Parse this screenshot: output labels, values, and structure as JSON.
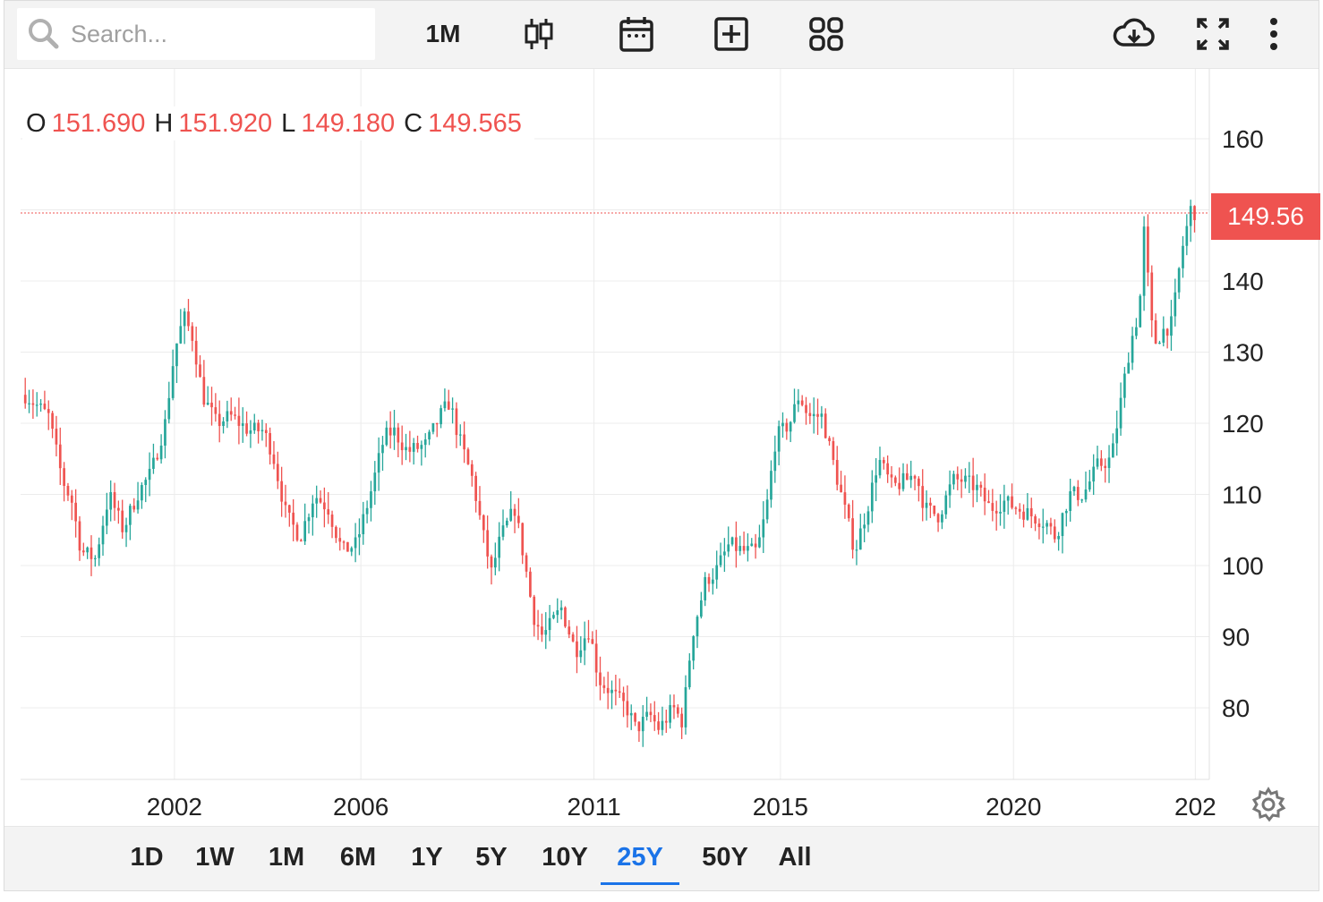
{
  "search": {
    "placeholder": "Search..."
  },
  "toolbar": {
    "interval": "1M",
    "icons": [
      "candlestick-icon",
      "calendar-icon",
      "add-indicator-icon",
      "layout-grid-icon",
      "cloud-download-icon",
      "fullscreen-icon",
      "more-icon"
    ]
  },
  "ohlc": {
    "o_label": "O",
    "o_value": "151.690",
    "h_label": "H",
    "h_value": "151.920",
    "l_label": "L",
    "l_value": "149.180",
    "c_label": "C",
    "c_value": "149.565"
  },
  "price_tag": "149.56",
  "range_buttons": [
    {
      "label": "1D",
      "active": false
    },
    {
      "label": "1W",
      "active": false
    },
    {
      "label": "1M",
      "active": false
    },
    {
      "label": "6M",
      "active": false
    },
    {
      "label": "1Y",
      "active": false
    },
    {
      "label": "5Y",
      "active": false
    },
    {
      "label": "10Y",
      "active": false
    },
    {
      "label": "25Y",
      "active": true
    },
    {
      "label": "50Y",
      "active": false
    },
    {
      "label": "All",
      "active": false
    }
  ],
  "colors": {
    "up": "#26a69a",
    "down": "#ef5350",
    "active": "#1a73e8",
    "grid": "#ececec"
  },
  "chart_data": {
    "type": "candlestick",
    "interval": "1M",
    "x_tick_labels": [
      "2002",
      "2006",
      "2011",
      "2015",
      "2020",
      "202"
    ],
    "y_tick_labels": [
      "160",
      "140",
      "130",
      "120",
      "110",
      "100",
      "90",
      "80"
    ],
    "ylim": [
      70,
      170
    ],
    "xlim": [
      1998.7,
      2024.2
    ],
    "last_close": 149.565,
    "grid": true,
    "path": [
      [
        1998.8,
        124
      ],
      [
        1999.3,
        121
      ],
      [
        1999.6,
        112
      ],
      [
        1999.8,
        109
      ],
      [
        2000.0,
        102
      ],
      [
        2000.3,
        101
      ],
      [
        2000.6,
        110
      ],
      [
        2000.9,
        105
      ],
      [
        2001.2,
        110
      ],
      [
        2001.5,
        113
      ],
      [
        2001.8,
        120
      ],
      [
        2002.0,
        130
      ],
      [
        2002.2,
        135
      ],
      [
        2002.4,
        132
      ],
      [
        2002.6,
        124
      ],
      [
        2002.9,
        120
      ],
      [
        2003.2,
        121
      ],
      [
        2003.6,
        119
      ],
      [
        2003.9,
        119
      ],
      [
        2004.1,
        116
      ],
      [
        2004.4,
        107
      ],
      [
        2004.7,
        104
      ],
      [
        2005.0,
        110
      ],
      [
        2005.3,
        108
      ],
      [
        2005.6,
        102
      ],
      [
        2005.9,
        103
      ],
      [
        2006.2,
        110
      ],
      [
        2006.5,
        118
      ],
      [
        2006.7,
        119
      ],
      [
        2007.0,
        116
      ],
      [
        2007.4,
        117
      ],
      [
        2007.7,
        121
      ],
      [
        2007.9,
        123
      ],
      [
        2008.1,
        118
      ],
      [
        2008.4,
        112
      ],
      [
        2008.6,
        105
      ],
      [
        2008.8,
        99
      ],
      [
        2009.0,
        104
      ],
      [
        2009.3,
        108
      ],
      [
        2009.5,
        101
      ],
      [
        2009.7,
        93
      ],
      [
        2009.9,
        90
      ],
      [
        2010.1,
        92
      ],
      [
        2010.3,
        94
      ],
      [
        2010.6,
        88
      ],
      [
        2010.9,
        91
      ],
      [
        2011.1,
        84
      ],
      [
        2011.4,
        82
      ],
      [
        2011.7,
        80
      ],
      [
        2011.9,
        77
      ],
      [
        2012.2,
        79
      ],
      [
        2012.4,
        77
      ],
      [
        2012.7,
        80
      ],
      [
        2012.9,
        78
      ],
      [
        2013.1,
        90
      ],
      [
        2013.4,
        98
      ],
      [
        2013.6,
        99
      ],
      [
        2013.9,
        103
      ],
      [
        2014.2,
        102
      ],
      [
        2014.5,
        102
      ],
      [
        2014.7,
        108
      ],
      [
        2014.9,
        118
      ],
      [
        2015.2,
        120
      ],
      [
        2015.4,
        124
      ],
      [
        2015.6,
        121
      ],
      [
        2015.9,
        121
      ],
      [
        2016.0,
        118
      ],
      [
        2016.3,
        110
      ],
      [
        2016.6,
        102
      ],
      [
        2016.9,
        109
      ],
      [
        2017.1,
        115
      ],
      [
        2017.4,
        111
      ],
      [
        2017.7,
        112
      ],
      [
        2017.9,
        113
      ],
      [
        2018.1,
        108
      ],
      [
        2018.4,
        107
      ],
      [
        2018.7,
        112
      ],
      [
        2018.9,
        112
      ],
      [
        2019.2,
        111
      ],
      [
        2019.5,
        108
      ],
      [
        2019.8,
        109
      ],
      [
        2020.1,
        108
      ],
      [
        2020.4,
        107
      ],
      [
        2020.7,
        106
      ],
      [
        2020.9,
        104
      ],
      [
        2021.2,
        110
      ],
      [
        2021.5,
        110
      ],
      [
        2021.8,
        114
      ],
      [
        2022.1,
        115
      ],
      [
        2022.3,
        123
      ],
      [
        2022.5,
        131
      ],
      [
        2022.7,
        136
      ],
      [
        2022.8,
        147
      ],
      [
        2023.0,
        131
      ],
      [
        2023.2,
        133
      ],
      [
        2023.4,
        134
      ],
      [
        2023.6,
        144
      ],
      [
        2023.8,
        150
      ],
      [
        2023.95,
        149.5
      ]
    ]
  }
}
